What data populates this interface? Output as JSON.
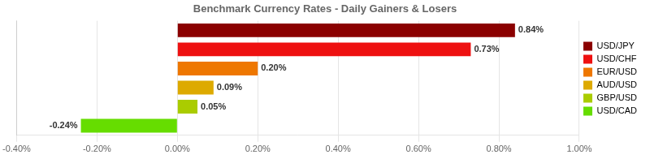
{
  "chart_data": {
    "type": "bar",
    "orientation": "horizontal",
    "title": "Benchmark Currency Rates - Daily Gainers & Losers",
    "categories": [
      "USD/JPY",
      "USD/CHF",
      "EUR/USD",
      "AUD/USD",
      "GBP/USD",
      "USD/CAD"
    ],
    "values": [
      0.84,
      0.73,
      0.2,
      0.09,
      0.05,
      -0.24
    ],
    "value_labels": [
      "0.84%",
      "0.73%",
      "0.20%",
      "0.09%",
      "0.05%",
      "-0.24%"
    ],
    "data_labels": true,
    "colors": [
      "#8b0000",
      "#ee1111",
      "#ee7700",
      "#ddaa00",
      "#aacc00",
      "#66dd00"
    ],
    "xlim": [
      -0.4,
      1.0
    ],
    "xticks": [
      {
        "value": -0.4,
        "label": "-0.40%"
      },
      {
        "value": -0.2,
        "label": "-0.20%"
      },
      {
        "value": 0.0,
        "label": "0.00%"
      },
      {
        "value": 0.2,
        "label": "0.20%"
      },
      {
        "value": 0.4,
        "label": "0.40%"
      },
      {
        "value": 0.6,
        "label": "0.60%"
      },
      {
        "value": 0.8,
        "label": "0.80%"
      },
      {
        "value": 1.0,
        "label": "1.00%"
      }
    ],
    "grid": true,
    "tick_labels": "x",
    "legend": "right"
  }
}
